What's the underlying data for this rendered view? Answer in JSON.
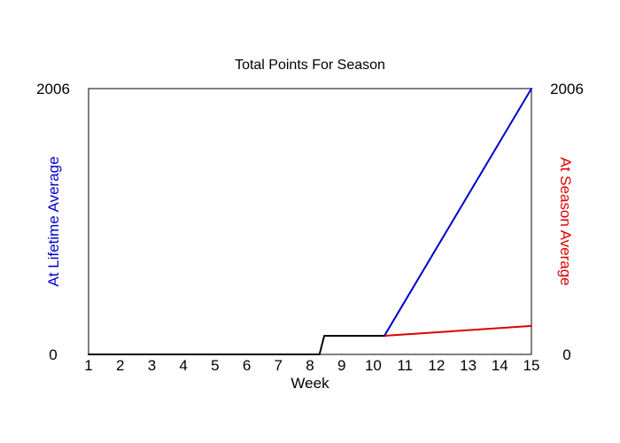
{
  "chart_data": {
    "type": "line",
    "title": "Total Points For Season",
    "xlabel": "Week",
    "ylabel_left": "At Lifetime Average",
    "ylabel_right": "At Season Average",
    "xlim": [
      1,
      15
    ],
    "ylim": [
      0,
      2006
    ],
    "x_ticks": [
      1,
      2,
      3,
      4,
      5,
      6,
      7,
      8,
      9,
      10,
      11,
      12,
      13,
      14,
      15
    ],
    "y_ticks_left": [
      "0",
      "2006"
    ],
    "y_ticks_right": [
      "0",
      "2006"
    ],
    "grid": false,
    "legend": "none",
    "series": [
      {
        "color": "#000000",
        "points": [
          [
            1,
            0
          ],
          [
            8.3,
            0
          ],
          [
            8.45,
            140
          ],
          [
            10.35,
            140
          ]
        ]
      },
      {
        "color": "#0000cc",
        "points": [
          [
            10.35,
            140
          ],
          [
            15,
            2006
          ]
        ]
      },
      {
        "color": "#dd0000",
        "points": [
          [
            10.35,
            140
          ],
          [
            15,
            215
          ]
        ]
      }
    ],
    "colors": {
      "left_label": "#0000cc",
      "right_label": "#dd0000"
    }
  }
}
